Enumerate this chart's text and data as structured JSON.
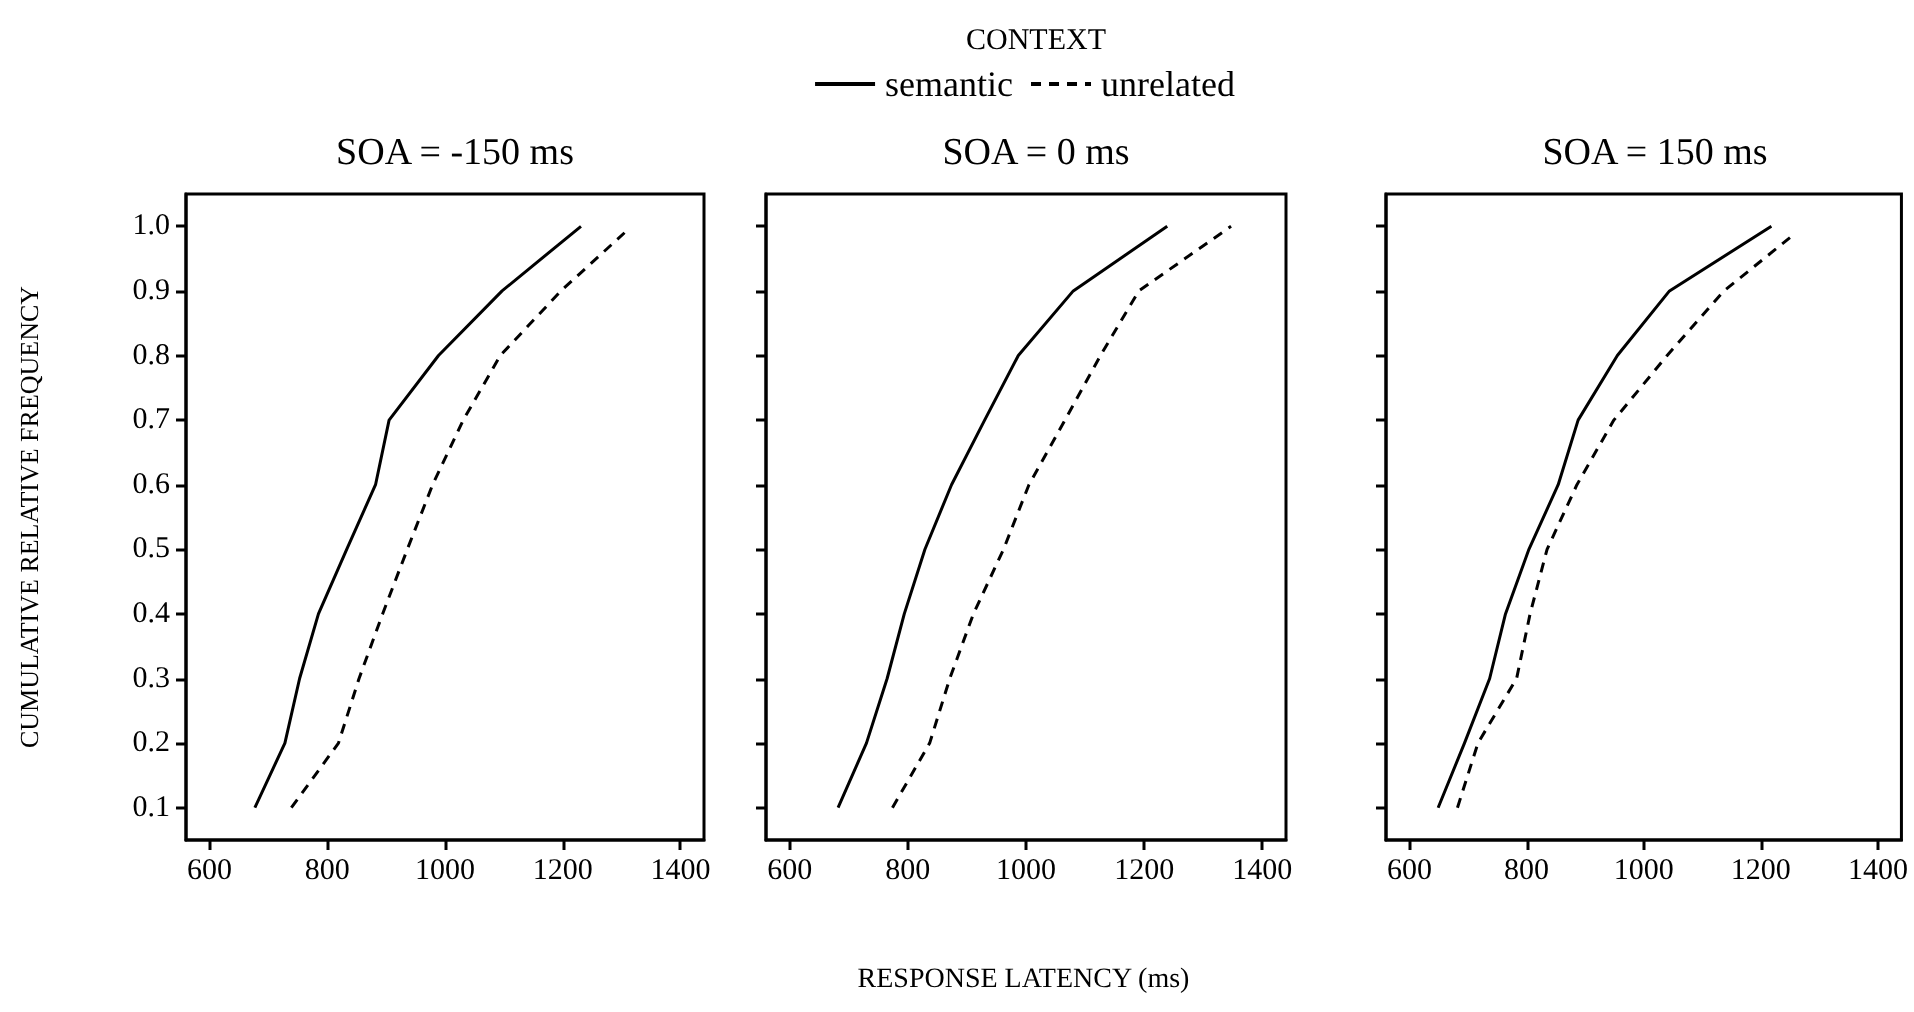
{
  "chart_data": [
    {
      "type": "line",
      "title": "SOA = -150 ms",
      "ylabel": "CUMULATIVE RELATIVE FREQUENCY",
      "xlim": [
        560,
        1440
      ],
      "xticks": [
        600,
        800,
        1000,
        1200,
        1400
      ],
      "ylim": [
        0.05,
        1.05
      ],
      "yticks": [
        {
          "value": 0.1,
          "label": "0.1"
        },
        {
          "value": 0.2,
          "label": "0.2"
        },
        {
          "value": 0.3,
          "label": "0.3"
        },
        {
          "value": 0.4,
          "label": "0.4"
        },
        {
          "value": 0.5,
          "label": "0.5"
        },
        {
          "value": 0.6,
          "label": "0.6"
        },
        {
          "value": 0.7,
          "label": "0.7"
        },
        {
          "value": 0.8,
          "label": "0.8"
        },
        {
          "value": 0.9,
          "label": "0.9"
        },
        {
          "value": 1.0,
          "label": "1.0"
        }
      ],
      "series": [
        {
          "color": "#000000",
          "line_style": "solid",
          "x": [
            677,
            728,
            753,
            785,
            833,
            882,
            905,
            989,
            1097,
            1231
          ],
          "values": [
            0.1,
            0.2,
            0.3,
            0.4,
            0.5,
            0.6,
            0.7,
            0.8,
            0.9,
            1.0
          ]
        },
        {
          "color": "#000000",
          "line_style": "dashed",
          "x": [
            739,
            819,
            854,
            894,
            936,
            979,
            1031,
            1094,
            1197,
            1305
          ],
          "values": [
            0.1,
            0.2,
            0.3,
            0.4,
            0.5,
            0.6,
            0.7,
            0.8,
            0.9,
            0.99
          ]
        }
      ]
    },
    {
      "type": "line",
      "title": "SOA = 0 ms",
      "xlabel": "RESPONSE LATENCY (ms)",
      "legend_title": "CONTEXT",
      "legend": "top",
      "tick_labels": "x",
      "xlim": [
        560,
        1440
      ],
      "xticks": [
        600,
        800,
        1000,
        1200,
        1400
      ],
      "ylim": [
        0.05,
        1.05
      ],
      "yticks": [
        {
          "value": 0.1,
          "label": null
        },
        {
          "value": 0.2,
          "label": null
        },
        {
          "value": 0.3,
          "label": null
        },
        {
          "value": 0.4,
          "label": null
        },
        {
          "value": 0.5,
          "label": null
        },
        {
          "value": 0.6,
          "label": null
        },
        {
          "value": 0.7,
          "label": null
        },
        {
          "value": 0.8,
          "label": null
        },
        {
          "value": 0.9,
          "label": null
        },
        {
          "value": 1.0,
          "label": null
        }
      ],
      "series": [
        {
          "name": "semantic",
          "color": "#000000",
          "line_style": "solid",
          "x": [
            682,
            730,
            765,
            794,
            829,
            874,
            930,
            987,
            1080,
            1239
          ],
          "values": [
            0.1,
            0.2,
            0.3,
            0.4,
            0.5,
            0.6,
            0.7,
            0.8,
            0.9,
            1.0
          ]
        },
        {
          "name": "unrelated",
          "color": "#000000",
          "line_style": "dashed",
          "x": [
            774,
            837,
            871,
            911,
            962,
            1005,
            1066,
            1126,
            1191,
            1347
          ],
          "values": [
            0.1,
            0.2,
            0.3,
            0.4,
            0.5,
            0.6,
            0.7,
            0.8,
            0.9,
            1.0
          ]
        }
      ]
    },
    {
      "type": "line",
      "title": "SOA = 150 ms",
      "tick_labels": "x",
      "xlim": [
        560,
        1440
      ],
      "xticks": [
        600,
        800,
        1000,
        1200,
        1400
      ],
      "ylim": [
        0.05,
        1.05
      ],
      "yticks": [
        {
          "value": 0.1,
          "label": null
        },
        {
          "value": 0.2,
          "label": null
        },
        {
          "value": 0.3,
          "label": null
        },
        {
          "value": 0.4,
          "label": null
        },
        {
          "value": 0.5,
          "label": null
        },
        {
          "value": 0.6,
          "label": null
        },
        {
          "value": 0.7,
          "label": null
        },
        {
          "value": 0.8,
          "label": null
        },
        {
          "value": 0.9,
          "label": null
        },
        {
          "value": 1.0,
          "label": null
        }
      ],
      "series": [
        {
          "color": "#000000",
          "line_style": "solid",
          "x": [
            649,
            694,
            737,
            764,
            804,
            854,
            888,
            955,
            1044,
            1218
          ],
          "values": [
            0.1,
            0.2,
            0.3,
            0.4,
            0.5,
            0.6,
            0.7,
            0.8,
            0.9,
            1.0
          ]
        },
        {
          "color": "#000000",
          "line_style": "dashed",
          "x": [
            682,
            717,
            783,
            806,
            835,
            886,
            949,
            1040,
            1137,
            1260
          ],
          "values": [
            0.1,
            0.2,
            0.3,
            0.4,
            0.5,
            0.6,
            0.7,
            0.8,
            0.9,
            0.99
          ]
        }
      ]
    }
  ]
}
